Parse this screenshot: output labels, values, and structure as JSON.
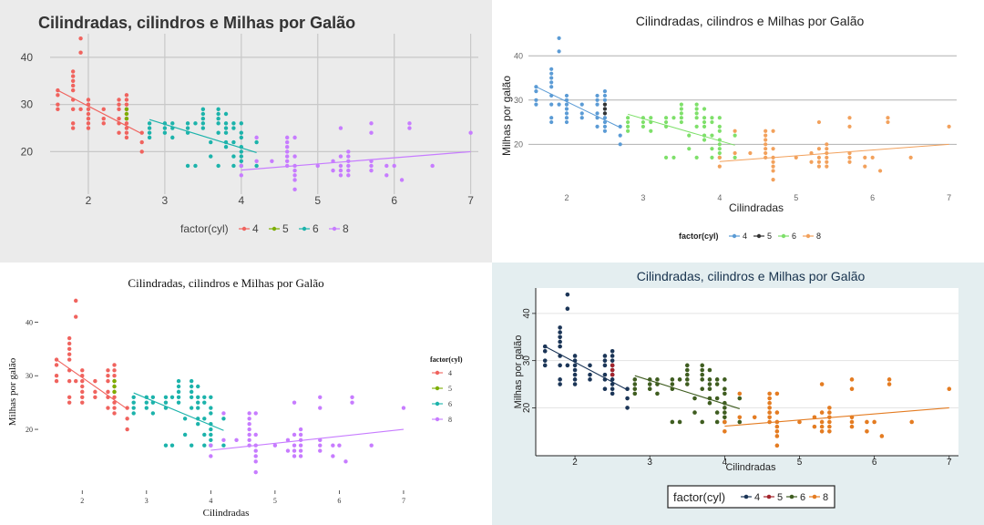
{
  "chart_data": {
    "type": "scatter",
    "layout": "2x2 grid of the same chart rendered in four themes",
    "title": "Cilindradas, cilindros e Milhas por Galão",
    "xlabel": "Cilindradas",
    "ylabel": "Milhas por galão",
    "legend_title": "factor(cyl)",
    "xlim": [
      1.5,
      7.1
    ],
    "ylim": [
      11,
      45
    ],
    "xticks": [
      2,
      3,
      4,
      5,
      6,
      7
    ],
    "yticks": [
      20,
      30,
      40
    ],
    "series": [
      {
        "name": "4",
        "points": [
          [
            1.6,
            29
          ],
          [
            1.6,
            30
          ],
          [
            1.6,
            32
          ],
          [
            1.6,
            33
          ],
          [
            1.8,
            29
          ],
          [
            1.8,
            31
          ],
          [
            1.8,
            33
          ],
          [
            1.8,
            34
          ],
          [
            1.8,
            35
          ],
          [
            1.8,
            36
          ],
          [
            1.8,
            37
          ],
          [
            1.8,
            26
          ],
          [
            1.8,
            25
          ],
          [
            1.9,
            44
          ],
          [
            1.9,
            41
          ],
          [
            1.9,
            29
          ],
          [
            2.0,
            31
          ],
          [
            2.0,
            30
          ],
          [
            2.0,
            29
          ],
          [
            2.0,
            28
          ],
          [
            2.0,
            27
          ],
          [
            2.0,
            26
          ],
          [
            2.0,
            25
          ],
          [
            2.2,
            27
          ],
          [
            2.2,
            29
          ],
          [
            2.2,
            26
          ],
          [
            2.4,
            31
          ],
          [
            2.4,
            30
          ],
          [
            2.4,
            29
          ],
          [
            2.4,
            27
          ],
          [
            2.4,
            26
          ],
          [
            2.4,
            24
          ],
          [
            2.5,
            32
          ],
          [
            2.5,
            31
          ],
          [
            2.5,
            30
          ],
          [
            2.5,
            29
          ],
          [
            2.5,
            28
          ],
          [
            2.5,
            27
          ],
          [
            2.5,
            26
          ],
          [
            2.5,
            25
          ],
          [
            2.5,
            24
          ],
          [
            2.5,
            23
          ],
          [
            2.7,
            24
          ],
          [
            2.7,
            22
          ],
          [
            2.7,
            20
          ]
        ],
        "fit": [
          [
            1.6,
            33
          ],
          [
            2.7,
            23.8
          ]
        ]
      },
      {
        "name": "5",
        "points": [
          [
            2.5,
            29
          ],
          [
            2.5,
            28
          ],
          [
            2.5,
            27
          ]
        ],
        "fit": []
      },
      {
        "name": "6",
        "points": [
          [
            2.8,
            26
          ],
          [
            2.8,
            25
          ],
          [
            2.8,
            24
          ],
          [
            2.8,
            23
          ],
          [
            3.0,
            26
          ],
          [
            3.0,
            25
          ],
          [
            3.0,
            24
          ],
          [
            3.1,
            26
          ],
          [
            3.1,
            25
          ],
          [
            3.1,
            23
          ],
          [
            3.3,
            24
          ],
          [
            3.3,
            25
          ],
          [
            3.3,
            26
          ],
          [
            3.3,
            17
          ],
          [
            3.4,
            26
          ],
          [
            3.4,
            17
          ],
          [
            3.5,
            29
          ],
          [
            3.5,
            28
          ],
          [
            3.5,
            27
          ],
          [
            3.5,
            26
          ],
          [
            3.5,
            25
          ],
          [
            3.6,
            22
          ],
          [
            3.6,
            19
          ],
          [
            3.7,
            29
          ],
          [
            3.7,
            28
          ],
          [
            3.7,
            27
          ],
          [
            3.7,
            26
          ],
          [
            3.7,
            24
          ],
          [
            3.7,
            17
          ],
          [
            3.8,
            28
          ],
          [
            3.8,
            26
          ],
          [
            3.8,
            25
          ],
          [
            3.8,
            24
          ],
          [
            3.8,
            22
          ],
          [
            3.8,
            21
          ],
          [
            3.9,
            26
          ],
          [
            3.9,
            25
          ],
          [
            3.9,
            22
          ],
          [
            3.9,
            19
          ],
          [
            3.9,
            17
          ],
          [
            4.0,
            26
          ],
          [
            4.0,
            24
          ],
          [
            4.0,
            23
          ],
          [
            4.0,
            21
          ],
          [
            4.0,
            20
          ],
          [
            4.0,
            19
          ],
          [
            4.0,
            18
          ],
          [
            4.0,
            17
          ],
          [
            4.2,
            17
          ],
          [
            4.2,
            22
          ]
        ],
        "fit": [
          [
            2.8,
            26.8
          ],
          [
            4.2,
            19.8
          ]
        ]
      },
      {
        "name": "8",
        "points": [
          [
            4.0,
            15
          ],
          [
            4.0,
            17
          ],
          [
            4.2,
            23
          ],
          [
            4.2,
            18
          ],
          [
            4.4,
            18
          ],
          [
            4.6,
            23
          ],
          [
            4.6,
            22
          ],
          [
            4.6,
            21
          ],
          [
            4.6,
            20
          ],
          [
            4.6,
            19
          ],
          [
            4.6,
            18
          ],
          [
            4.6,
            17
          ],
          [
            4.7,
            19
          ],
          [
            4.7,
            17
          ],
          [
            4.7,
            16
          ],
          [
            4.7,
            15
          ],
          [
            4.7,
            14
          ],
          [
            4.7,
            12
          ],
          [
            4.7,
            23
          ],
          [
            5.0,
            17
          ],
          [
            5.2,
            18
          ],
          [
            5.2,
            16
          ],
          [
            5.3,
            25
          ],
          [
            5.3,
            19
          ],
          [
            5.3,
            17
          ],
          [
            5.3,
            16
          ],
          [
            5.3,
            15
          ],
          [
            5.4,
            20
          ],
          [
            5.4,
            19
          ],
          [
            5.4,
            18
          ],
          [
            5.4,
            17
          ],
          [
            5.4,
            16
          ],
          [
            5.4,
            15
          ],
          [
            5.7,
            26
          ],
          [
            5.7,
            24
          ],
          [
            5.7,
            18
          ],
          [
            5.7,
            17
          ],
          [
            5.7,
            16
          ],
          [
            5.9,
            17
          ],
          [
            5.9,
            15
          ],
          [
            6.0,
            17
          ],
          [
            6.1,
            14
          ],
          [
            6.2,
            26
          ],
          [
            6.2,
            25
          ],
          [
            6.5,
            17
          ],
          [
            7.0,
            24
          ]
        ],
        "fit": [
          [
            4.0,
            16.1
          ],
          [
            7.0,
            20
          ]
        ]
      }
    ]
  },
  "panels": [
    {
      "theme": "ggplot-grey",
      "title": "Cilindradas, cilindros e Milhas por Galão",
      "legend_title": "factor(cyl)",
      "colors": {
        "4": "#f0635e",
        "5": "#7cae00",
        "6": "#1cb3ab",
        "8": "#c77cff"
      },
      "fit_colors": {
        "4": "#f0635e",
        "6": "#1cb3ab",
        "8": "#c77cff"
      },
      "bg": "#ebebeb"
    },
    {
      "theme": "excel-like",
      "title": "Cilindradas, cilindros e Milhas por Galão",
      "xlabel": "Cilindradas",
      "ylabel": "Milhas por galão",
      "legend_title": "factor(cyl)",
      "colors": {
        "4": "#5b9bd5",
        "5": "#333333",
        "6": "#7ee06a",
        "8": "#f2a15c"
      },
      "fit_colors": {
        "4": "#5b9bd5",
        "6": "#7ee06a",
        "8": "#f2a15c"
      },
      "bg": "#ffffff"
    },
    {
      "theme": "tufte-serif",
      "title": "Cilindradas, cilindros e Milhas por Galão",
      "xlabel": "Cilindradas",
      "ylabel": "Milhas por galão",
      "legend_title": "factor(cyl)",
      "colors": {
        "4": "#f0635e",
        "5": "#7cae00",
        "6": "#1cb3ab",
        "8": "#c77cff"
      },
      "fit_colors": {
        "4": "#f0635e",
        "6": "#1cb3ab",
        "8": "#c77cff"
      },
      "bg": "#ffffff"
    },
    {
      "theme": "economist-like",
      "title": "Cilindradas, cilindros e Milhas por Galão",
      "xlabel": "Cilindradas",
      "ylabel": "Milhas por galão",
      "legend_title": "factor(cyl)",
      "colors": {
        "4": "#1b3557",
        "5": "#a3242c",
        "6": "#3f5d20",
        "8": "#e47c22"
      },
      "fit_colors": {
        "4": "#1b3557",
        "6": "#3f5d20",
        "8": "#e47c22"
      },
      "bg": "#e4eef0"
    }
  ],
  "legend_labels": [
    "4",
    "5",
    "6",
    "8"
  ]
}
